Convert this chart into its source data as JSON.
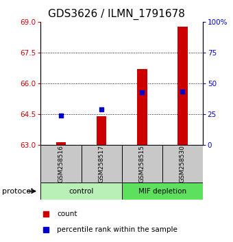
{
  "title": "GDS3626 / ILMN_1791678",
  "categories": [
    "GSM258516",
    "GSM258517",
    "GSM258515",
    "GSM258530"
  ],
  "bar_values": [
    63.15,
    64.4,
    66.7,
    68.75
  ],
  "bar_base": 63.0,
  "percentile_values": [
    24.0,
    29.0,
    43.0,
    43.5
  ],
  "ylim_left": [
    63,
    69
  ],
  "ylim_right": [
    0,
    100
  ],
  "yticks_left": [
    63,
    64.5,
    66,
    67.5,
    69
  ],
  "yticks_right": [
    0,
    25,
    50,
    75,
    100
  ],
  "bar_color": "#CC0000",
  "percentile_color": "#0000CC",
  "title_fontsize": 11,
  "tick_fontsize": 7.5,
  "label_color_left": "#CC0000",
  "label_color_right": "#0000CC",
  "bar_width": 0.25,
  "control_color": "#b8f0b8",
  "mif_color": "#5de05d",
  "label_bg": "#c8c8c8"
}
